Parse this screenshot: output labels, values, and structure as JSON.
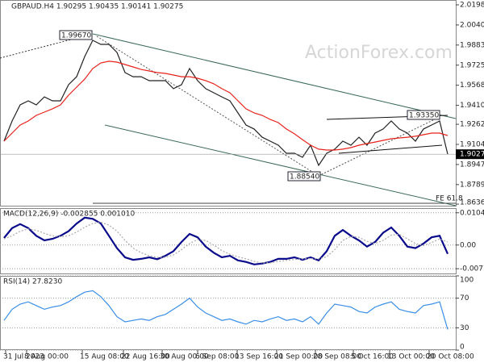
{
  "chart_data": [
    {
      "type": "line",
      "title": "GBPAUD.H4 1.90295 1.90435 1.90141 1.90275",
      "watermark": "ActionForex.com",
      "annotations": [
        "1.99670",
        "1.88540",
        "1.93350",
        "FE 61.8"
      ],
      "xlim": [
        -0.5,
        55.5
      ],
      "ylim": [
        1.8624,
        2.0236
      ],
      "yticks": [
        {
          "value": 2.0198,
          "label": "2.01980"
        },
        2.00405,
        {
          "value": 1.9883,
          "label": "1.98830"
        },
        1.97255,
        {
          "value": 1.9568,
          "label": "1.95680"
        },
        1.94105,
        {
          "value": 1.9262,
          "label": "1.92620"
        },
        1.91045,
        {
          "value": 1.8947,
          "label": "1.89470"
        },
        1.87895,
        1.86365
      ],
      "series": [
        {
          "color": "#222222",
          "values": [
            1.913,
            1.9288,
            1.9414,
            1.9446,
            1.9414,
            1.9477,
            1.9446,
            1.9446,
            1.9572,
            1.9635,
            1.9793,
            1.992,
            1.9888,
            1.9888,
            1.9825,
            1.9667,
            1.9635,
            1.9635,
            1.9604,
            1.9604,
            1.9604,
            1.9541,
            1.9572,
            1.9699,
            1.9604,
            1.9541,
            1.9509,
            1.9477,
            1.9446,
            1.9351,
            1.9256,
            1.9225,
            1.9161,
            1.913,
            1.9098,
            1.9035,
            1.9035,
            1.9003,
            1.9098,
            1.894,
            1.9035,
            1.9067,
            1.913,
            1.9098,
            1.9161,
            1.9098,
            1.9193,
            1.9225,
            1.9288,
            1.9225,
            1.9193,
            1.913,
            1.9225,
            1.9256,
            1.9288,
            1.90275
          ]
        },
        {
          "color": "#e8221c",
          "values": [
            1.913,
            1.9193,
            1.9256,
            1.9288,
            1.9332,
            1.9357,
            1.9383,
            1.9414,
            1.949,
            1.9553,
            1.9616,
            1.9699,
            1.9743,
            1.9756,
            1.9749,
            1.973,
            1.9711,
            1.9692,
            1.968,
            1.9667,
            1.9661,
            1.9648,
            1.9635,
            1.9635,
            1.9623,
            1.9604,
            1.9579,
            1.9541,
            1.9509,
            1.9446,
            1.9383,
            1.9351,
            1.9332,
            1.93,
            1.9275,
            1.9225,
            1.9187,
            1.9142,
            1.9098,
            1.9067,
            1.906,
            1.906,
            1.9067,
            1.9079,
            1.9098,
            1.9111,
            1.9123,
            1.9136,
            1.9149,
            1.9155,
            1.9161,
            1.9168,
            1.918,
            1.9193,
            1.9193,
            1.9174
          ]
        }
      ]
    },
    {
      "type": "line",
      "title": "MACD(12,26,9) -0.002855 0.001010",
      "xlim": [
        -0.5,
        55.5
      ],
      "ylim": [
        -0.0095,
        0.012
      ],
      "yticks": [
        0.010483,
        {
          "value": 0,
          "label": "0.00"
        },
        -0.0077
      ],
      "series": [
        {
          "color": "#0a0a8c",
          "values": [
            0.0023,
            0.0055,
            0.0068,
            0.0055,
            0.003,
            0.0015,
            0.002,
            0.003,
            0.0045,
            0.007,
            0.0089,
            0.0085,
            0.007,
            0.003,
            -0.001,
            -0.004,
            -0.0048,
            -0.0045,
            -0.004,
            -0.0046,
            -0.0035,
            -0.002,
            0.001,
            0.0036,
            0.0025,
            -0.0005,
            -0.0025,
            -0.004,
            -0.0035,
            -0.005,
            -0.0055,
            -0.0063,
            -0.006,
            -0.0055,
            -0.0045,
            -0.0045,
            -0.004,
            -0.0048,
            -0.004,
            -0.005,
            -0.002,
            0.003,
            0.0049,
            0.003,
            0.0015,
            -0.0005,
            0.001,
            0.004,
            0.0057,
            0.003,
            -0.0005,
            -0.001,
            0.0005,
            0.0025,
            0.003,
            -0.002855
          ]
        },
        {
          "color": "#aaaaaa",
          "dashed": true,
          "values": [
            0.002,
            0.003,
            0.0045,
            0.0052,
            0.0048,
            0.0038,
            0.003,
            0.0027,
            0.003,
            0.0042,
            0.0058,
            0.007,
            0.0074,
            0.0065,
            0.0045,
            0.0015,
            -0.001,
            -0.0025,
            -0.0035,
            -0.004,
            -0.004,
            -0.0032,
            -0.0015,
            0.0005,
            0.0018,
            0.0015,
            0,
            -0.0018,
            -0.003,
            -0.0038,
            -0.0045,
            -0.0053,
            -0.0058,
            -0.0058,
            -0.0053,
            -0.005,
            -0.0047,
            -0.0045,
            -0.0044,
            -0.0045,
            -0.0038,
            -0.0015,
            0.0015,
            0.0028,
            0.0025,
            0.0012,
            0.0005,
            0.0015,
            0.0032,
            0.0035,
            0.002,
            0.0005,
            -0.0002,
            0.0008,
            0.002,
            0.00101
          ]
        }
      ]
    },
    {
      "type": "line",
      "title": "RSI(14) 27.8230",
      "xlim": [
        -0.5,
        55.5
      ],
      "ylim": [
        0,
        100
      ],
      "yticks": [
        100,
        70,
        30,
        0
      ],
      "xticks": [
        {
          "value": -0.3,
          "label": "31 Jul 2023"
        },
        {
          "value": 2.3,
          "label": "8 Aug 00:00"
        },
        {
          "value": 9.2,
          "label": "15 Aug 08:00"
        },
        {
          "value": 14.3,
          "label": "22 Aug 16:00"
        },
        {
          "value": 19.1,
          "label": "30 Aug 00:00"
        },
        {
          "value": 23.5,
          "label": "6 Sep 08:00"
        },
        {
          "value": 28.4,
          "label": "13 Sep 16:00"
        },
        {
          "value": 33.3,
          "label": "21 Sep 00:00"
        },
        {
          "value": 38.1,
          "label": "28 Sep 08:00"
        },
        {
          "value": 42.8,
          "label": "5 Oct 16:00"
        },
        {
          "value": 47.3,
          "label": "13 Oct 00:00"
        },
        {
          "value": 52.2,
          "label": "20 Oct 08:00"
        }
      ],
      "series": [
        {
          "color": "#3a8ee6",
          "values": [
            40,
            55,
            62,
            65,
            60,
            55,
            58,
            60,
            65,
            72,
            78,
            80,
            72,
            60,
            45,
            38,
            40,
            42,
            40,
            45,
            48,
            55,
            62,
            70,
            58,
            50,
            45,
            40,
            42,
            38,
            35,
            40,
            38,
            42,
            45,
            40,
            42,
            38,
            45,
            35,
            50,
            62,
            60,
            58,
            52,
            50,
            58,
            62,
            65,
            55,
            52,
            50,
            60,
            62,
            65,
            27.823
          ]
        }
      ]
    }
  ]
}
